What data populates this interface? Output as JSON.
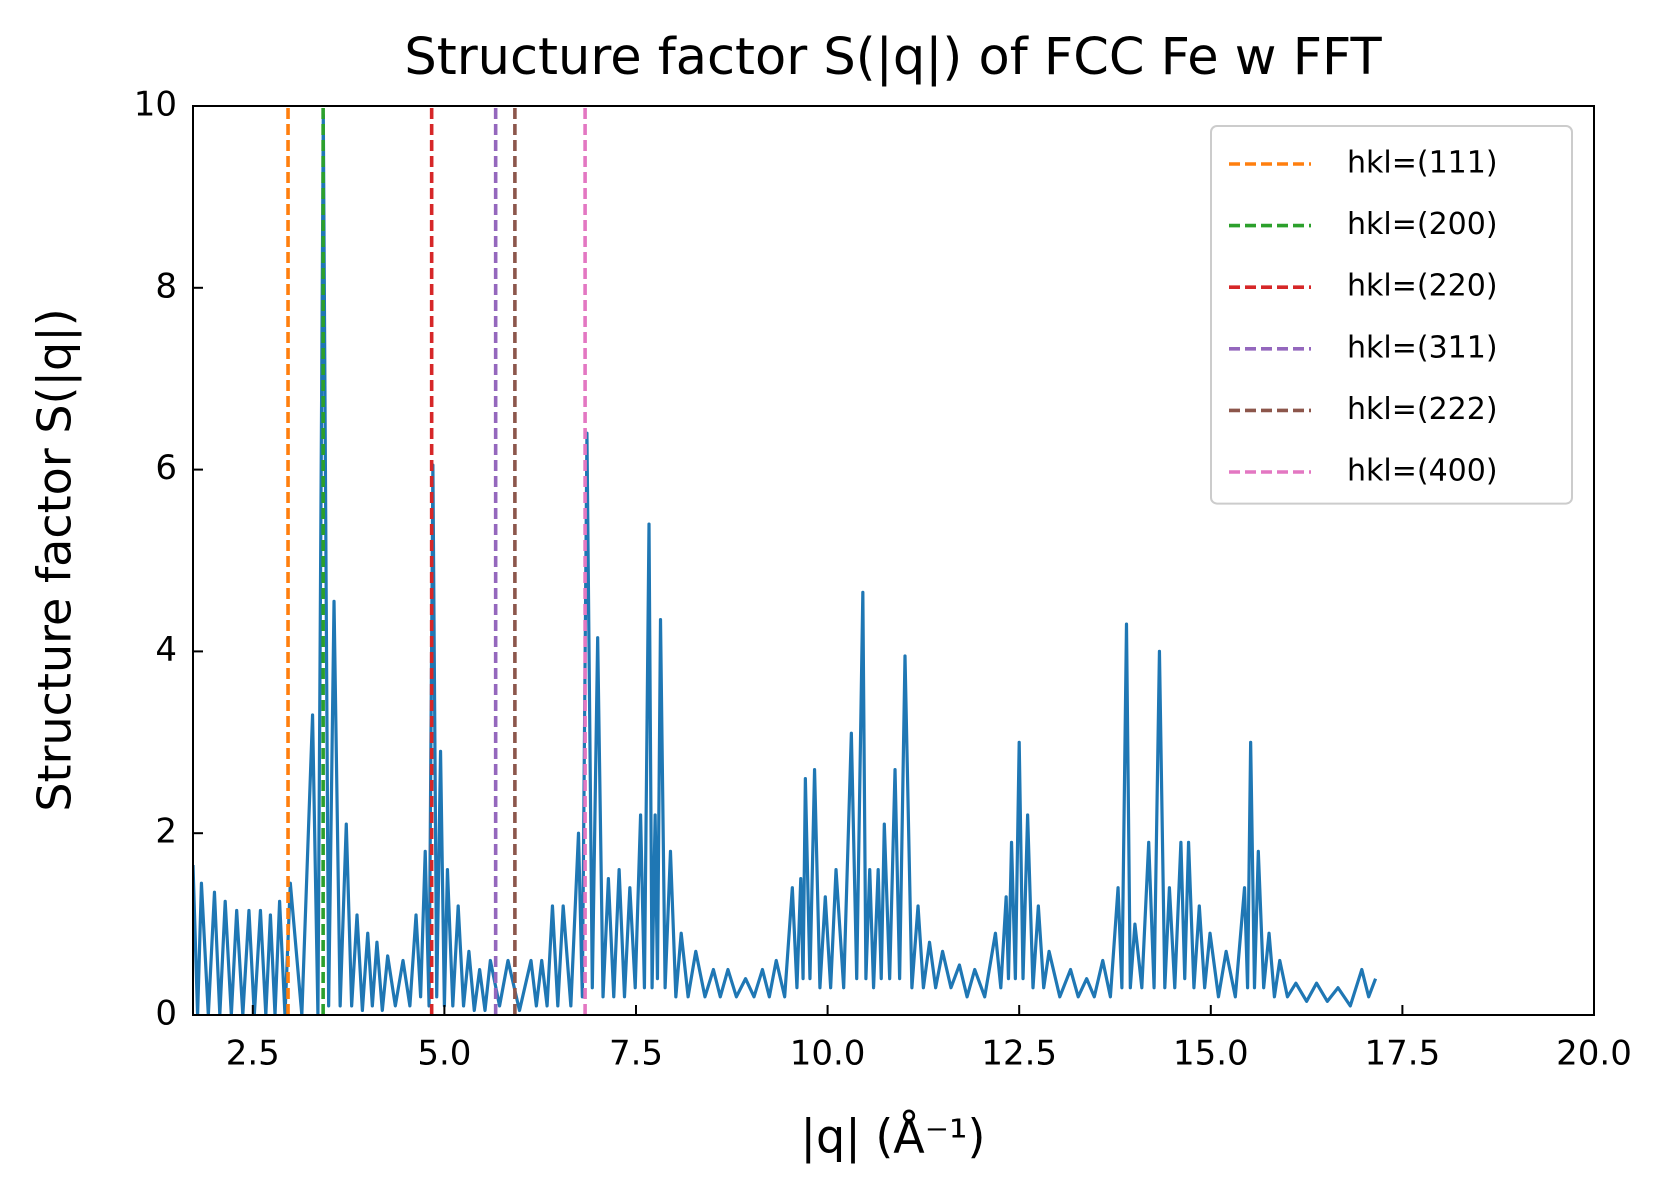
{
  "chart_data": {
    "type": "line",
    "title": "Structure factor S(|q|) of FCC Fe w FFT",
    "xlabel": "|q| (Å⁻¹)",
    "ylabel": "Structure factor S(|q|)",
    "xlim": [
      1.72,
      20
    ],
    "ylim": [
      0,
      10
    ],
    "xticks": [
      2.5,
      {
        "value": 5,
        "label": "5.0"
      },
      7.5,
      {
        "value": 10,
        "label": "10.0"
      },
      12.5,
      {
        "value": 15,
        "label": "15.0"
      },
      17.5,
      {
        "value": 20,
        "label": "20.0"
      }
    ],
    "yticks": [
      0,
      2,
      4,
      6,
      8,
      10
    ],
    "tick_direction": "in",
    "legend_position": "upper-right",
    "series": [
      {
        "color": "#1f77b4",
        "x": [
          1.72,
          1.78,
          1.83,
          1.92,
          2.0,
          2.07,
          2.14,
          2.22,
          2.29,
          2.37,
          2.45,
          2.52,
          2.6,
          2.67,
          2.73,
          2.79,
          2.85,
          2.92,
          2.99,
          3.14,
          3.28,
          3.35,
          3.42,
          3.49,
          3.56,
          3.64,
          3.72,
          3.79,
          3.86,
          3.93,
          4.0,
          4.06,
          4.12,
          4.19,
          4.26,
          4.36,
          4.46,
          4.55,
          4.63,
          4.69,
          4.75,
          4.8,
          4.85,
          4.9,
          4.95,
          5.0,
          5.04,
          5.11,
          5.18,
          5.25,
          5.32,
          5.39,
          5.46,
          5.53,
          5.6,
          5.72,
          5.83,
          5.98,
          6.13,
          6.2,
          6.27,
          6.34,
          6.41,
          6.48,
          6.55,
          6.65,
          6.75,
          6.8,
          6.86,
          6.93,
          7.0,
          7.07,
          7.14,
          7.21,
          7.28,
          7.35,
          7.42,
          7.49,
          7.56,
          7.61,
          7.67,
          7.71,
          7.75,
          7.78,
          7.82,
          7.88,
          7.95,
          8.02,
          8.09,
          8.18,
          8.28,
          8.4,
          8.51,
          8.6,
          8.7,
          8.81,
          8.93,
          9.04,
          9.15,
          9.24,
          9.33,
          9.44,
          9.54,
          9.6,
          9.65,
          9.68,
          9.71,
          9.77,
          9.83,
          9.9,
          9.97,
          10.04,
          10.11,
          10.21,
          10.31,
          10.38,
          10.46,
          10.5,
          10.55,
          10.6,
          10.66,
          10.7,
          10.74,
          10.81,
          10.88,
          10.94,
          11.01,
          11.1,
          11.18,
          11.25,
          11.33,
          11.41,
          11.5,
          11.61,
          11.72,
          11.82,
          11.92,
          12.05,
          12.19,
          12.26,
          12.33,
          12.36,
          12.4,
          12.45,
          12.5,
          12.55,
          12.61,
          12.68,
          12.75,
          12.82,
          12.89,
          13.03,
          13.17,
          13.27,
          13.38,
          13.48,
          13.59,
          13.69,
          13.79,
          13.84,
          13.9,
          13.95,
          14.01,
          14.1,
          14.19,
          14.26,
          14.33,
          14.4,
          14.46,
          14.53,
          14.61,
          14.66,
          14.71,
          14.78,
          14.85,
          14.92,
          14.99,
          15.1,
          15.2,
          15.32,
          15.44,
          15.48,
          15.52,
          15.57,
          15.62,
          15.69,
          15.76,
          15.83,
          15.9,
          16.0,
          16.11,
          16.25,
          16.38,
          16.52,
          16.66,
          16.82,
          16.97,
          17.06,
          17.15
        ],
        "values": [
          1.65,
          0,
          1.45,
          0,
          1.35,
          0,
          1.25,
          0,
          1.15,
          0,
          1.15,
          0,
          1.15,
          0,
          1.1,
          0,
          1.25,
          0,
          1.45,
          0,
          3.3,
          0,
          9.9,
          0.1,
          4.55,
          0.1,
          2.1,
          0.1,
          1.1,
          0.05,
          0.9,
          0.1,
          0.8,
          0.05,
          0.65,
          0.1,
          0.6,
          0.1,
          1.1,
          0.2,
          1.8,
          0.1,
          6.05,
          0.2,
          2.9,
          0.1,
          1.6,
          0.1,
          1.2,
          0.1,
          0.7,
          0.05,
          0.5,
          0.05,
          0.6,
          0.1,
          0.6,
          0.05,
          0.6,
          0.1,
          0.6,
          0.1,
          1.2,
          0.1,
          1.2,
          0.1,
          2.0,
          0.2,
          6.4,
          0.3,
          4.15,
          0.2,
          1.5,
          0.2,
          1.6,
          0.2,
          1.4,
          0.3,
          2.2,
          0.3,
          5.4,
          0.3,
          2.2,
          0.4,
          4.35,
          0.3,
          1.8,
          0.2,
          0.9,
          0.2,
          0.7,
          0.2,
          0.5,
          0.2,
          0.5,
          0.2,
          0.4,
          0.2,
          0.5,
          0.2,
          0.6,
          0.2,
          1.4,
          0.3,
          1.5,
          0.4,
          2.6,
          0.4,
          2.7,
          0.3,
          1.3,
          0.3,
          1.6,
          0.3,
          3.1,
          0.4,
          4.65,
          0.4,
          1.6,
          0.3,
          1.6,
          0.4,
          2.1,
          0.4,
          2.7,
          0.4,
          3.95,
          0.3,
          1.2,
          0.3,
          0.8,
          0.3,
          0.7,
          0.3,
          0.55,
          0.2,
          0.5,
          0.2,
          0.9,
          0.3,
          1.3,
          0.4,
          1.9,
          0.4,
          3.0,
          0.4,
          2.2,
          0.3,
          1.2,
          0.3,
          0.7,
          0.2,
          0.5,
          0.2,
          0.4,
          0.2,
          0.6,
          0.2,
          1.4,
          0.3,
          4.3,
          0.3,
          1.0,
          0.3,
          1.9,
          0.3,
          4.0,
          0.3,
          1.4,
          0.3,
          1.9,
          0.4,
          1.9,
          0.3,
          1.2,
          0.3,
          0.9,
          0.2,
          0.7,
          0.2,
          1.4,
          0.3,
          3.0,
          0.3,
          1.8,
          0.3,
          0.9,
          0.2,
          0.6,
          0.2,
          0.35,
          0.15,
          0.35,
          0.15,
          0.3,
          0.1,
          0.5,
          0.2,
          0.4
        ]
      }
    ],
    "vlines": [
      {
        "name": "hkl=(111)",
        "color": "#ff7f0e",
        "x": 2.96
      },
      {
        "name": "hkl=(200)",
        "color": "#2ca02c",
        "x": 3.418
      },
      {
        "name": "hkl=(220)",
        "color": "#d62728",
        "x": 4.834
      },
      {
        "name": "hkl=(311)",
        "color": "#9467bd",
        "x": 5.669
      },
      {
        "name": "hkl=(222)",
        "color": "#8c564b",
        "x": 5.92
      },
      {
        "name": "hkl=(400)",
        "color": "#e377c2",
        "x": 6.836
      }
    ]
  }
}
